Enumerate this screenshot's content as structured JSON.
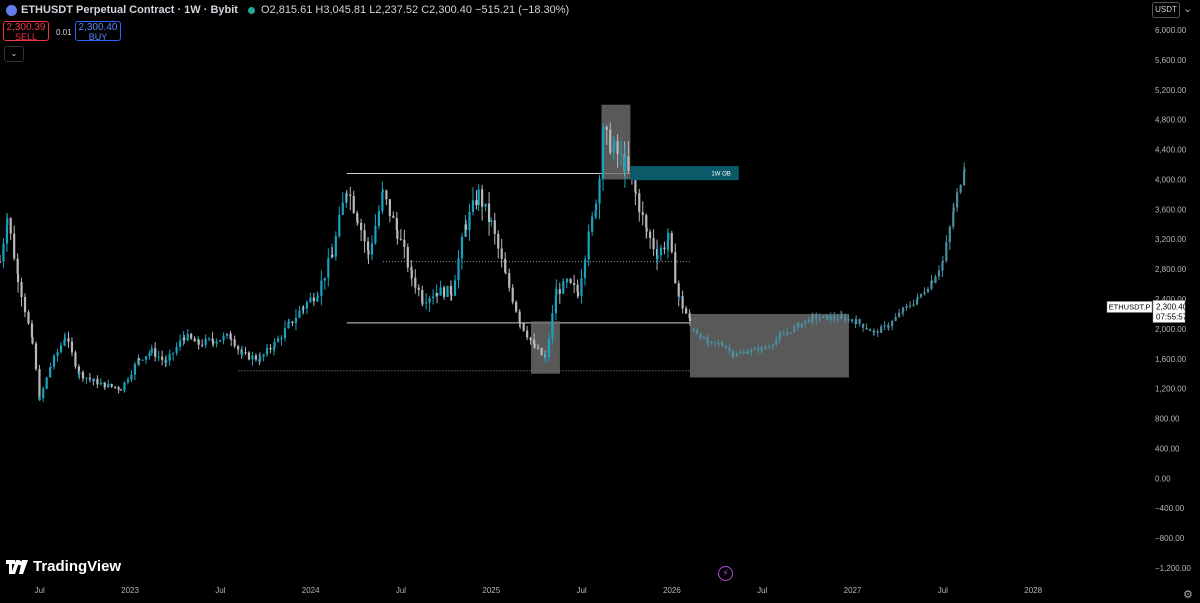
{
  "header": {
    "title": "ETHUSDT Perpetual Contract · 1W · Bybit",
    "ohlc": "O2,815.61  H3,045.81  L2,237.52  C2,300.40  −515.21 (−18.30%)"
  },
  "trade": {
    "sell_price": "2,300.39",
    "sell_label": "SELL",
    "buy_price": "2,300.40",
    "buy_label": "BUY",
    "spread": "0.01"
  },
  "currency_label": "USDT",
  "brand": "TradingView",
  "chart_data": {
    "type": "candlestick",
    "symbol": "ETHUSDT.P",
    "last_price": "2,300.40",
    "countdown": "07:55:57",
    "ylim": [
      -1250,
      6150
    ],
    "y_ticks": [
      "6,000.00",
      "5,600.00",
      "5,200.00",
      "4,800.00",
      "4,400.00",
      "4,000.00",
      "3,600.00",
      "3,200.00",
      "2,800.00",
      "2,400.00",
      "2,000.00",
      "1,600.00",
      "1,200.00",
      "800.00",
      "400.00",
      "0.00",
      "−400.00",
      "−800.00",
      "−1,200.00"
    ],
    "y_tick_values": [
      6000,
      5600,
      5200,
      4800,
      4400,
      4000,
      3600,
      3200,
      2800,
      2400,
      2000,
      1600,
      1200,
      800,
      400,
      0,
      -400,
      -800,
      -1200
    ],
    "x_labels": [
      "Jul",
      "2023",
      "Jul",
      "2024",
      "Jul",
      "2025",
      "Jul",
      "2026",
      "Jul",
      "2027",
      "Jul",
      "2028"
    ],
    "x_label_dates": [
      2022.5,
      2023.0,
      2023.5,
      2024.0,
      2024.5,
      2025.0,
      2025.5,
      2026.0,
      2026.5,
      2027.0,
      2027.5,
      2028.0
    ],
    "xlim": [
      2022.28,
      2028.37
    ],
    "colors": {
      "up": "#1aa3bf",
      "down": "#b9b9b9",
      "projection": "#4a8fa0",
      "box": "#6f6f6f",
      "ob": "#0b5a6a"
    },
    "key_points": [
      [
        2022.28,
        2900
      ],
      [
        2022.32,
        3500
      ],
      [
        2022.38,
        2700
      ],
      [
        2022.46,
        1800
      ],
      [
        2022.5,
        1050
      ],
      [
        2022.56,
        1500
      ],
      [
        2022.64,
        1900
      ],
      [
        2022.72,
        1400
      ],
      [
        2022.8,
        1300
      ],
      [
        2022.86,
        1250
      ],
      [
        2022.95,
        1200
      ],
      [
        2023.05,
        1600
      ],
      [
        2023.12,
        1700
      ],
      [
        2023.2,
        1550
      ],
      [
        2023.3,
        1900
      ],
      [
        2023.38,
        1800
      ],
      [
        2023.46,
        1850
      ],
      [
        2023.56,
        1900
      ],
      [
        2023.62,
        1650
      ],
      [
        2023.72,
        1600
      ],
      [
        2023.8,
        1800
      ],
      [
        2023.88,
        2050
      ],
      [
        2023.96,
        2300
      ],
      [
        2024.04,
        2500
      ],
      [
        2024.12,
        3000
      ],
      [
        2024.2,
        3900
      ],
      [
        2024.26,
        3500
      ],
      [
        2024.32,
        3000
      ],
      [
        2024.4,
        3800
      ],
      [
        2024.48,
        3300
      ],
      [
        2024.56,
        2700
      ],
      [
        2024.62,
        2400
      ],
      [
        2024.7,
        2500
      ],
      [
        2024.78,
        2500
      ],
      [
        2024.86,
        3400
      ],
      [
        2024.93,
        3800
      ],
      [
        2025.0,
        3400
      ],
      [
        2025.08,
        2700
      ],
      [
        2025.16,
        2100
      ],
      [
        2025.24,
        1750
      ],
      [
        2025.3,
        1600
      ],
      [
        2025.36,
        2500
      ],
      [
        2025.42,
        2600
      ],
      [
        2025.48,
        2500
      ],
      [
        2025.52,
        3000
      ],
      [
        2025.58,
        3700
      ],
      [
        2025.62,
        4600
      ],
      [
        2025.68,
        4400
      ],
      [
        2025.74,
        4200
      ],
      [
        2025.8,
        3800
      ],
      [
        2025.86,
        3300
      ],
      [
        2025.92,
        3000
      ],
      [
        2025.98,
        3200
      ],
      [
        2026.04,
        2400
      ],
      [
        2026.1,
        2100
      ]
    ],
    "projection_points": [
      [
        2026.12,
        2000
      ],
      [
        2026.2,
        1800
      ],
      [
        2026.28,
        1800
      ],
      [
        2026.34,
        1650
      ],
      [
        2026.42,
        1700
      ],
      [
        2026.52,
        1750
      ],
      [
        2026.6,
        1900
      ],
      [
        2026.7,
        2050
      ],
      [
        2026.78,
        2150
      ],
      [
        2026.86,
        2150
      ],
      [
        2026.94,
        2150
      ],
      [
        2027.02,
        2100
      ],
      [
        2027.12,
        1950
      ],
      [
        2027.2,
        2050
      ],
      [
        2027.28,
        2250
      ],
      [
        2027.36,
        2400
      ],
      [
        2027.44,
        2650
      ],
      [
        2027.5,
        2900
      ],
      [
        2027.56,
        3600
      ],
      [
        2027.62,
        4200
      ]
    ],
    "levels": [
      {
        "y": 4080,
        "x1": 2024.2,
        "x2": 2026.1,
        "style": "solid"
      },
      {
        "y": 2080,
        "x1": 2024.2,
        "x2": 2026.1,
        "style": "solid"
      },
      {
        "y": 2900,
        "x1": 2024.4,
        "x2": 2026.1,
        "style": "dotted"
      },
      {
        "y": 1440,
        "x1": 2023.6,
        "x2": 2026.1,
        "style": "dotted"
      }
    ],
    "boxes": [
      {
        "x1": 2025.22,
        "x2": 2025.38,
        "y1": 1400,
        "y2": 2100
      },
      {
        "x1": 2025.61,
        "x2": 2025.77,
        "y1": 4000,
        "y2": 5000
      },
      {
        "x1": 2026.1,
        "x2": 2026.98,
        "y1": 1350,
        "y2": 2200
      }
    ],
    "ob_zone": {
      "label": "1W OB",
      "x1": 2025.77,
      "x2": 2026.37,
      "y1": 3990,
      "y2": 4180
    }
  }
}
